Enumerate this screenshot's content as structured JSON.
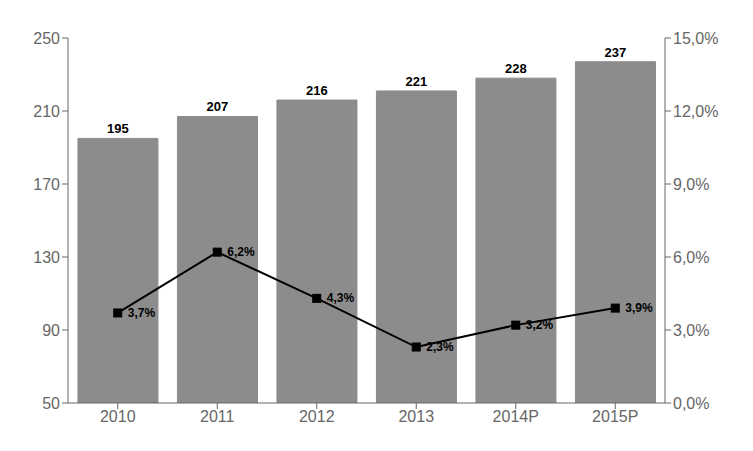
{
  "chart_data": {
    "type": "bar",
    "categories": [
      "2010",
      "2011",
      "2012",
      "2013",
      "2014P",
      "2015P"
    ],
    "series": [
      {
        "type": "bar",
        "color": "#8c8c8c",
        "values": [
          195,
          207,
          216,
          221,
          228,
          237
        ],
        "data_labels": true
      },
      {
        "type": "line",
        "axis": "y2",
        "color": "#000000",
        "marker": "square",
        "values": [
          3.7,
          6.2,
          4.3,
          2.3,
          3.2,
          3.9
        ],
        "value_labels": [
          "3,7%",
          "6,2%",
          "4,3%",
          "2,3%",
          "3,2%",
          "3,9%"
        ],
        "data_labels": true
      }
    ],
    "ylim": [
      50,
      250
    ],
    "yticks": [
      50,
      90,
      130,
      170,
      210,
      250
    ],
    "y2lim": [
      0.0,
      15.0
    ],
    "y2ticks": [
      {
        "value": 0.0,
        "label": "0,0%"
      },
      {
        "value": 3.0,
        "label": "3,0%"
      },
      {
        "value": 6.0,
        "label": "6,0%"
      },
      {
        "value": 9.0,
        "label": "9,0%"
      },
      {
        "value": 12.0,
        "label": "12,0%"
      },
      {
        "value": 15.0,
        "label": "15,0%"
      }
    ],
    "grid": false
  }
}
